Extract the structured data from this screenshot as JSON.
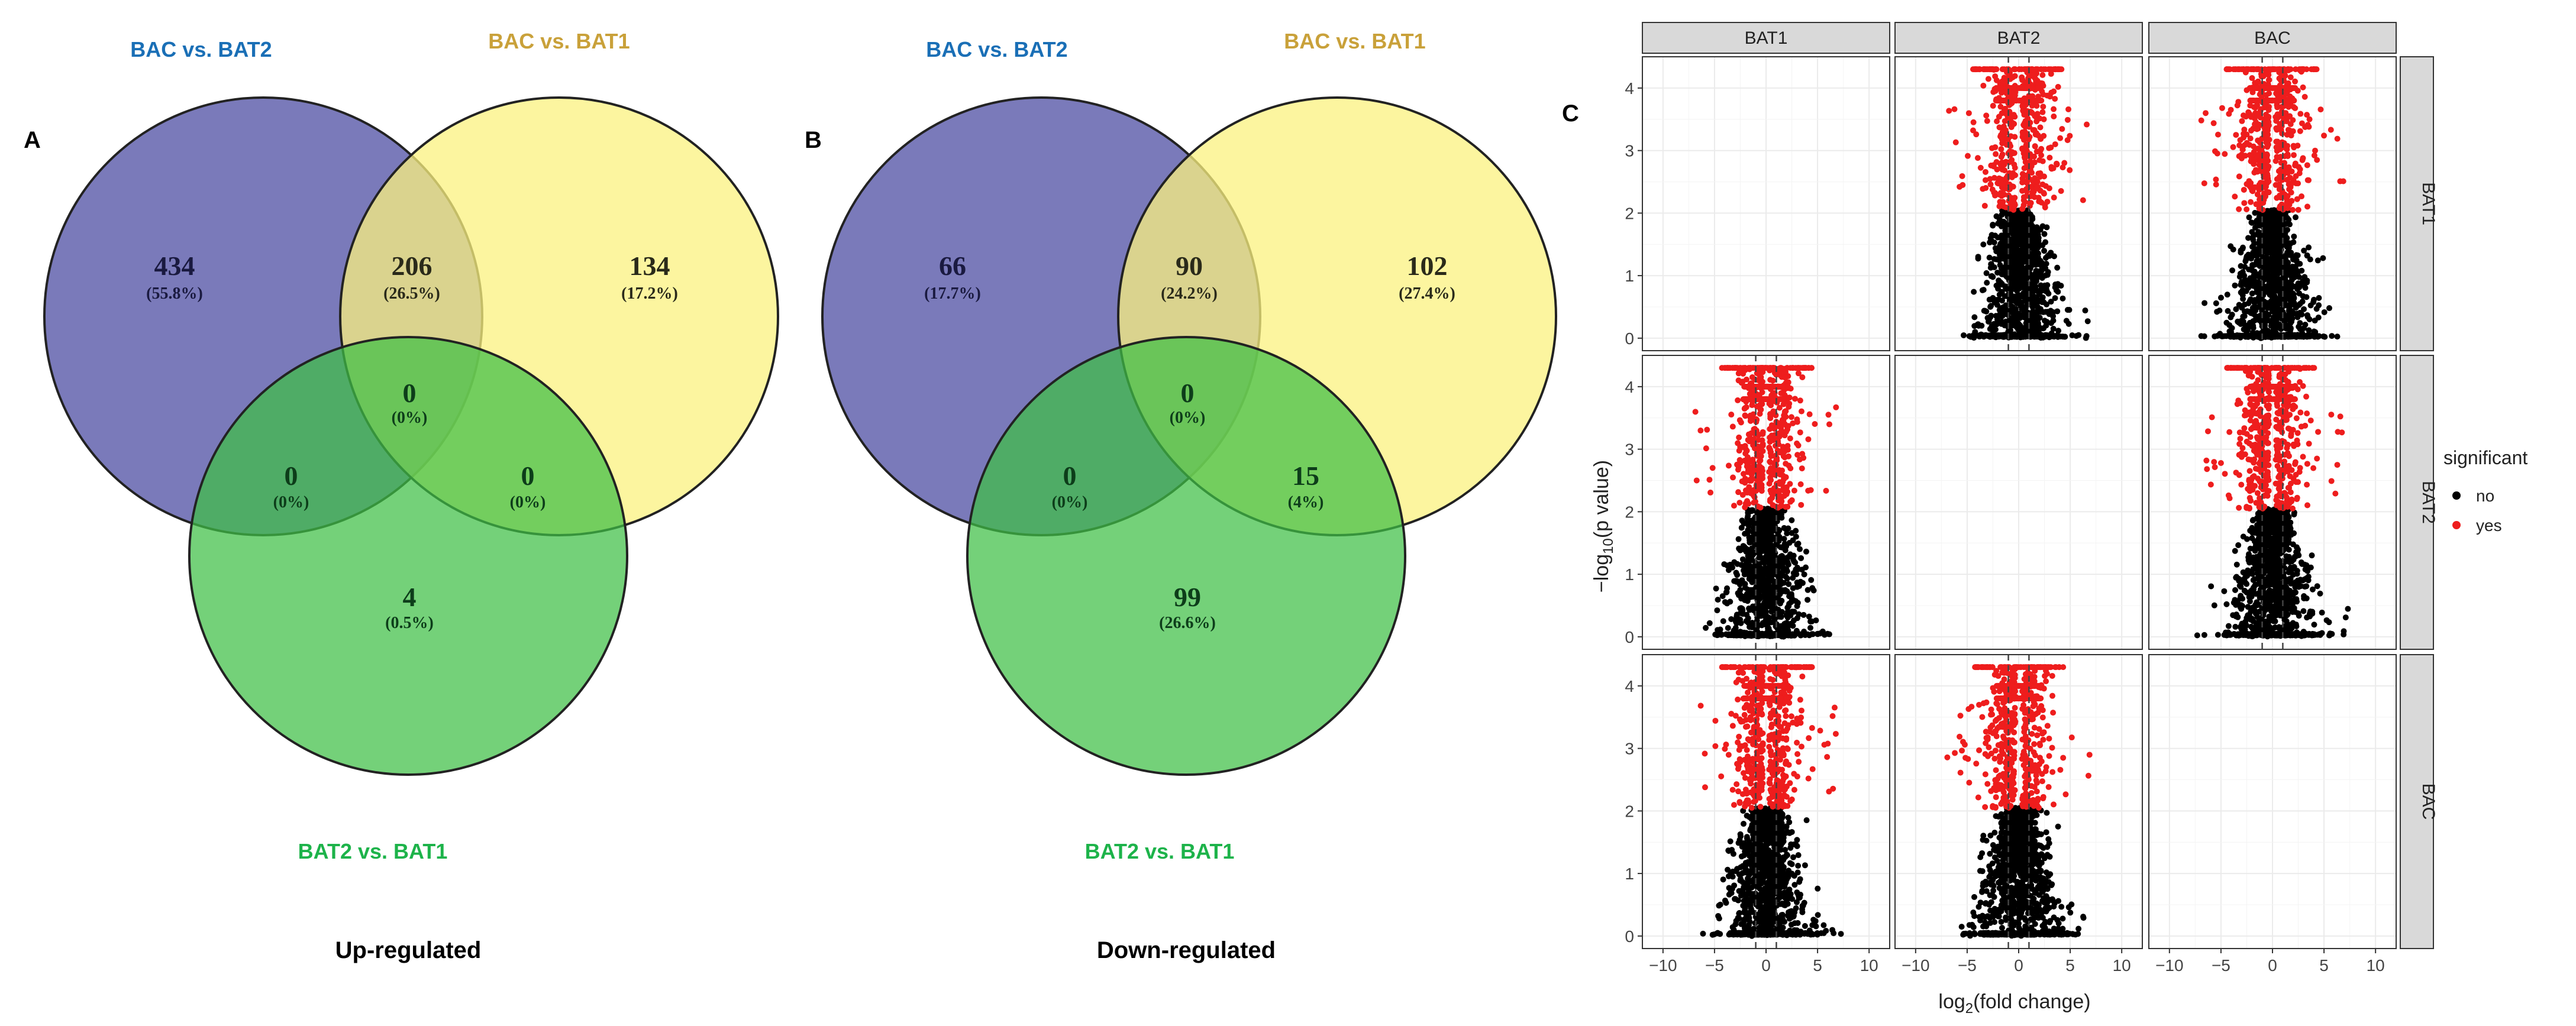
{
  "colors": {
    "set_blue": "#6f6fb4",
    "set_yellow": "#fbf27f",
    "set_green": "#62c45d",
    "label_blue": "#1a6fb6",
    "label_gold": "#c9a13a",
    "label_green": "#1db34a",
    "red": "#ee1d1d",
    "black": "#000000",
    "strip_bg": "#d9d9d9",
    "grid": "#ebebeb"
  },
  "chart_data": [
    {
      "type": "venn",
      "panel_label": "A",
      "title": "Up-regulated",
      "sets": [
        "BAC vs. BAT2",
        "BAC vs. BAT1",
        "BAT2 vs. BAT1"
      ],
      "regions": {
        "only_1": {
          "count": "434",
          "pct": "(55.8%)"
        },
        "only_2": {
          "count": "134",
          "pct": "(17.2%)"
        },
        "only_3": {
          "count": "4",
          "pct": "(0.5%)"
        },
        "r12": {
          "count": "206",
          "pct": "(26.5%)"
        },
        "r13": {
          "count": "0",
          "pct": "(0%)"
        },
        "r23": {
          "count": "0",
          "pct": "(0%)"
        },
        "r123": {
          "count": "0",
          "pct": "(0%)"
        }
      }
    },
    {
      "type": "venn",
      "panel_label": "B",
      "title": "Down-regulated",
      "sets": [
        "BAC vs. BAT2",
        "BAC vs. BAT1",
        "BAT2 vs. BAT1"
      ],
      "regions": {
        "only_1": {
          "count": "66",
          "pct": "(17.7%)"
        },
        "only_2": {
          "count": "102",
          "pct": "(27.4%)"
        },
        "only_3": {
          "count": "99",
          "pct": "(26.6%)"
        },
        "r12": {
          "count": "90",
          "pct": "(24.2%)"
        },
        "r13": {
          "count": "0",
          "pct": "(0%)"
        },
        "r23": {
          "count": "15",
          "pct": "(4%)"
        },
        "r123": {
          "count": "0",
          "pct": "(0%)"
        }
      }
    },
    {
      "type": "scatter",
      "panel_label": "C",
      "subtype": "faceted volcano plot matrix",
      "column_strips": [
        "BAT1",
        "BAT2",
        "BAC"
      ],
      "row_strips": [
        "BAT1",
        "BAT2",
        "BAC"
      ],
      "xlabel": "log2(fold change)",
      "ylabel": "-log10(p value)",
      "xlim": [
        -12,
        12
      ],
      "ylim": [
        -0.2,
        4.5
      ],
      "xticks": [
        -10,
        -5,
        0,
        5,
        10
      ],
      "yticks": [
        0,
        1,
        2,
        3,
        4
      ],
      "vline_x": [
        -1,
        1
      ],
      "significance_threshold_y": 2.05,
      "empty_panels": [
        [
          0,
          0
        ],
        [
          1,
          1
        ],
        [
          2,
          2
        ]
      ],
      "legend": {
        "title": "significant",
        "entries": [
          {
            "label": "no",
            "color": "#000000"
          },
          {
            "label": "yes",
            "color": "#ee1d1d"
          }
        ]
      },
      "grid": true
    }
  ]
}
